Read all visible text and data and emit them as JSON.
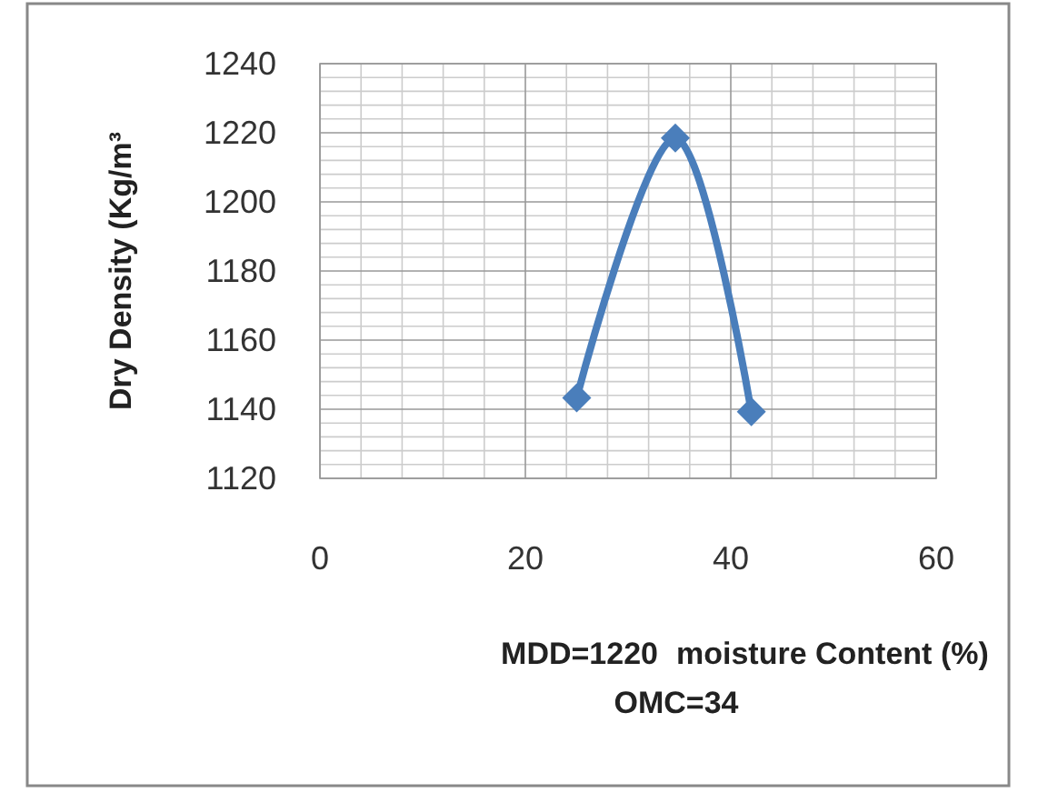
{
  "chart_data": {
    "type": "line",
    "xlabel": "moisture Content (%)",
    "ylabel": "Dry Density (Kg/m³",
    "annotations": [
      "MDD=1220",
      "OMC=34"
    ],
    "x": [
      25,
      34.6,
      42
    ],
    "series": [
      {
        "color": "#4a7ebb",
        "values": [
          1143.3,
          1218.5,
          1139.3
        ]
      }
    ],
    "xlim": [
      0,
      60
    ],
    "xticks": [
      0,
      20,
      40,
      60
    ],
    "ylim": [
      1120,
      1240
    ],
    "yticks": [
      1120,
      1140,
      1160,
      1180,
      1200,
      1220,
      1240
    ],
    "grid": true,
    "marker": "diamond",
    "line_style": "solid"
  }
}
